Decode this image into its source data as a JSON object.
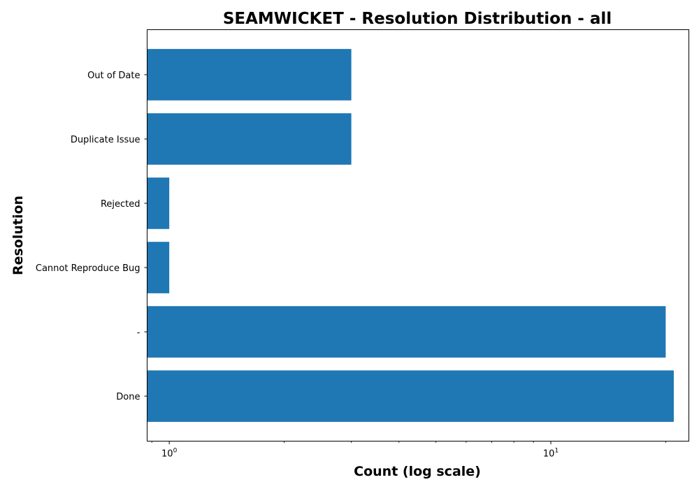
{
  "chart_data": {
    "type": "bar",
    "orientation": "horizontal",
    "title": "SEAMWICKET - Resolution Distribution - all",
    "xlabel": "Count (log scale)",
    "ylabel": "Resolution",
    "x_scale": "log",
    "xlim": [
      0.875,
      23
    ],
    "categories": [
      "Done",
      "-",
      "Cannot Reproduce Bug",
      "Rejected",
      "Duplicate Issue",
      "Out of Date"
    ],
    "values": [
      21,
      20,
      1,
      1,
      3,
      3
    ],
    "x_ticks": [
      {
        "value": 1,
        "label_base": "10",
        "label_exp": "0"
      },
      {
        "value": 10,
        "label_base": "10",
        "label_exp": "1"
      }
    ],
    "bar_color": "#1f77b4",
    "grid": false,
    "legend": "none"
  }
}
